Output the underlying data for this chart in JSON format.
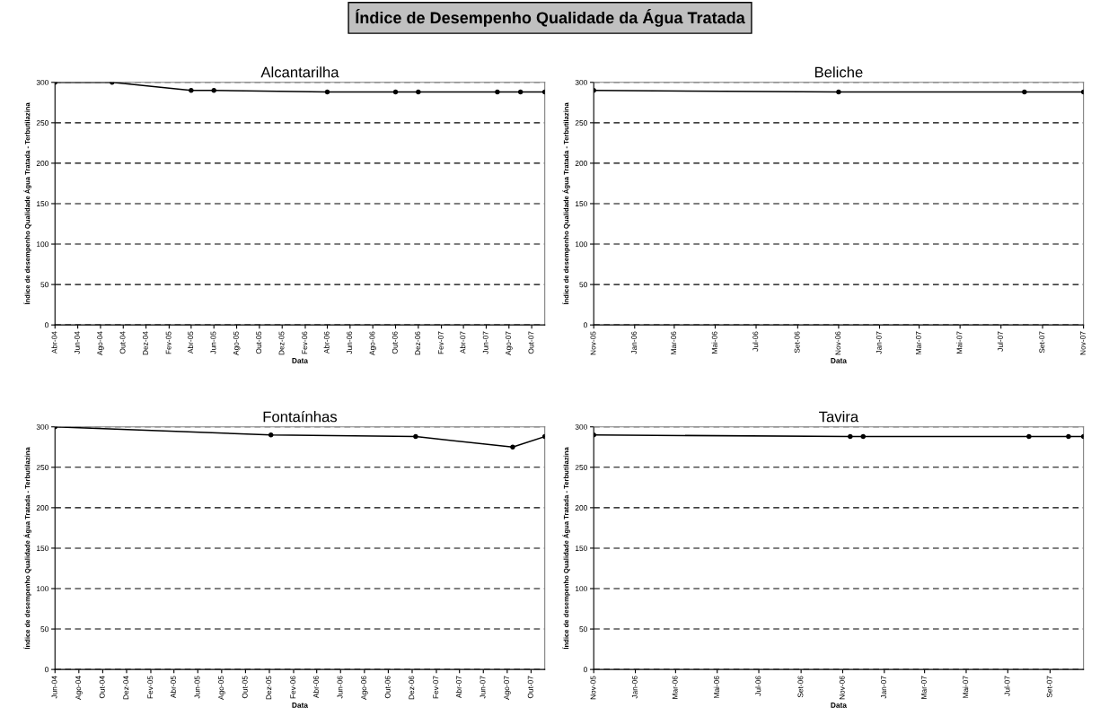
{
  "chart_data": [
    {
      "type": "line",
      "title": "Alcantarilha",
      "xlabel": "Data",
      "ylabel": "Índice de desempenho Qualidade Água Tratada - Terbutilazina",
      "annotations": [
        "Índice de Desempenho Qualidade da Água Tratada"
      ],
      "x": [
        "2004-04-01",
        "2004-09-01",
        "2005-04-01",
        "2005-06-01",
        "2006-04-01",
        "2006-10-01",
        "2006-12-01",
        "2007-07-01",
        "2007-09-01",
        "2007-11-05"
      ],
      "series": [
        {
          "color": "#000000",
          "values": [
            300,
            300,
            290,
            290,
            288,
            288,
            288,
            288,
            288,
            288
          ]
        }
      ],
      "xlim": [
        "2004-04-01",
        "2007-11-05"
      ],
      "xticks": [
        {
          "value": "2004-04-01",
          "label": "Abr-04"
        },
        {
          "value": "2004-06-01",
          "label": "Jun-04"
        },
        {
          "value": "2004-08-01",
          "label": "Ago-04"
        },
        {
          "value": "2004-10-01",
          "label": "Out-04"
        },
        {
          "value": "2004-12-01",
          "label": "Dez-04"
        },
        {
          "value": "2005-02-01",
          "label": "Fev-05"
        },
        {
          "value": "2005-04-01",
          "label": "Abr-05"
        },
        {
          "value": "2005-06-01",
          "label": "Jun-05"
        },
        {
          "value": "2005-08-01",
          "label": "Ago-05"
        },
        {
          "value": "2005-10-01",
          "label": "Out-05"
        },
        {
          "value": "2005-12-01",
          "label": "Dez-05"
        },
        {
          "value": "2006-02-01",
          "label": "Fev-06"
        },
        {
          "value": "2006-04-01",
          "label": "Abr-06"
        },
        {
          "value": "2006-06-01",
          "label": "Jun-06"
        },
        {
          "value": "2006-08-01",
          "label": "Ago-06"
        },
        {
          "value": "2006-10-01",
          "label": "Out-06"
        },
        {
          "value": "2006-12-01",
          "label": "Dez-06"
        },
        {
          "value": "2007-02-01",
          "label": "Fev-07"
        },
        {
          "value": "2007-04-01",
          "label": "Abr-07"
        },
        {
          "value": "2007-06-01",
          "label": "Jun-07"
        },
        {
          "value": "2007-08-01",
          "label": "Ago-07"
        },
        {
          "value": "2007-10-01",
          "label": "Out-07"
        }
      ],
      "ylim": [
        0,
        300
      ],
      "yticks": [
        0,
        50,
        100,
        150,
        200,
        250,
        300
      ],
      "grid": "y",
      "marker": "circle",
      "line_style": "solid"
    },
    {
      "type": "line",
      "title": "Beliche",
      "xlabel": "Data",
      "ylabel": "Índice de desempenho Qualidade Água Tratada - Terbutilazina",
      "x": [
        "2005-11-01",
        "2006-11-01",
        "2007-08-05",
        "2007-11-01"
      ],
      "series": [
        {
          "color": "#000000",
          "values": [
            290,
            288,
            288,
            288
          ]
        }
      ],
      "xlim": [
        "2005-11-01",
        "2007-11-01"
      ],
      "xticks": [
        {
          "value": "2005-11-01",
          "label": "Nov-05"
        },
        {
          "value": "2006-01-01",
          "label": "Jan-06"
        },
        {
          "value": "2006-03-01",
          "label": "Mar-06"
        },
        {
          "value": "2006-05-01",
          "label": "Mai-06"
        },
        {
          "value": "2006-07-01",
          "label": "Jul-06"
        },
        {
          "value": "2006-09-01",
          "label": "Set-06"
        },
        {
          "value": "2006-11-01",
          "label": "Nov-06"
        },
        {
          "value": "2007-01-01",
          "label": "Jan-07"
        },
        {
          "value": "2007-03-01",
          "label": "Mar-07"
        },
        {
          "value": "2007-05-01",
          "label": "Mai-07"
        },
        {
          "value": "2007-07-01",
          "label": "Jul-07"
        },
        {
          "value": "2007-09-01",
          "label": "Set-07"
        },
        {
          "value": "2007-11-01",
          "label": "Nov-07"
        }
      ],
      "ylim": [
        0,
        300
      ],
      "yticks": [
        0,
        50,
        100,
        150,
        200,
        250,
        300
      ],
      "grid": "y",
      "marker": "circle",
      "line_style": "solid"
    },
    {
      "type": "line",
      "title": "Fontaínhas",
      "xlabel": "Data",
      "ylabel": "Índice de desempenho Qualidade Água Tratada - Terbutilazina",
      "x": [
        "2004-06-01",
        "2005-12-05",
        "2006-12-10",
        "2007-08-15",
        "2007-11-05"
      ],
      "series": [
        {
          "color": "#000000",
          "values": [
            300,
            290,
            288,
            275,
            288
          ]
        }
      ],
      "xlim": [
        "2004-06-01",
        "2007-11-05"
      ],
      "xticks": [
        {
          "value": "2004-06-01",
          "label": "Jun-04"
        },
        {
          "value": "2004-08-01",
          "label": "Ago-04"
        },
        {
          "value": "2004-10-01",
          "label": "Out-04"
        },
        {
          "value": "2004-12-01",
          "label": "Dez-04"
        },
        {
          "value": "2005-02-01",
          "label": "Fev-05"
        },
        {
          "value": "2005-04-01",
          "label": "Abr-05"
        },
        {
          "value": "2005-06-01",
          "label": "Jun-05"
        },
        {
          "value": "2005-08-01",
          "label": "Ago-05"
        },
        {
          "value": "2005-10-01",
          "label": "Out-05"
        },
        {
          "value": "2005-12-01",
          "label": "Dez-05"
        },
        {
          "value": "2006-02-01",
          "label": "Fev-06"
        },
        {
          "value": "2006-04-01",
          "label": "Abr-06"
        },
        {
          "value": "2006-06-01",
          "label": "Jun-06"
        },
        {
          "value": "2006-08-01",
          "label": "Ago-06"
        },
        {
          "value": "2006-10-01",
          "label": "Out-06"
        },
        {
          "value": "2006-12-01",
          "label": "Dez-06"
        },
        {
          "value": "2007-02-01",
          "label": "Fev-07"
        },
        {
          "value": "2007-04-01",
          "label": "Abr-07"
        },
        {
          "value": "2007-06-01",
          "label": "Jun-07"
        },
        {
          "value": "2007-08-01",
          "label": "Ago-07"
        },
        {
          "value": "2007-10-01",
          "label": "Out-07"
        }
      ],
      "ylim": [
        0,
        300
      ],
      "yticks": [
        0,
        50,
        100,
        150,
        200,
        250,
        300
      ],
      "grid": "y",
      "marker": "circle",
      "line_style": "solid"
    },
    {
      "type": "line",
      "title": "Tavira",
      "xlabel": "Data",
      "ylabel": "Índice de desempenho Qualidade Água Tratada - Terbutilazina",
      "x": [
        "2005-11-01",
        "2006-11-12",
        "2006-12-01",
        "2007-08-01",
        "2007-09-28",
        "2007-10-20"
      ],
      "series": [
        {
          "color": "#000000",
          "values": [
            290,
            288,
            288,
            288,
            288,
            288
          ]
        }
      ],
      "xlim": [
        "2005-11-01",
        "2007-10-20"
      ],
      "xticks": [
        {
          "value": "2005-11-01",
          "label": "Nov-05"
        },
        {
          "value": "2006-01-01",
          "label": "Jan-06"
        },
        {
          "value": "2006-03-01",
          "label": "Mar-06"
        },
        {
          "value": "2006-05-01",
          "label": "Mai-06"
        },
        {
          "value": "2006-07-01",
          "label": "Jul-06"
        },
        {
          "value": "2006-09-01",
          "label": "Set-06"
        },
        {
          "value": "2006-11-01",
          "label": "Nov-06"
        },
        {
          "value": "2007-01-01",
          "label": "Jan-07"
        },
        {
          "value": "2007-03-01",
          "label": "Mar-07"
        },
        {
          "value": "2007-05-01",
          "label": "Mai-07"
        },
        {
          "value": "2007-07-01",
          "label": "Jul-07"
        },
        {
          "value": "2007-09-01",
          "label": "Set-07"
        }
      ],
      "ylim": [
        0,
        300
      ],
      "yticks": [
        0,
        50,
        100,
        150,
        200,
        250,
        300
      ],
      "grid": "y",
      "marker": "circle",
      "line_style": "solid"
    }
  ]
}
